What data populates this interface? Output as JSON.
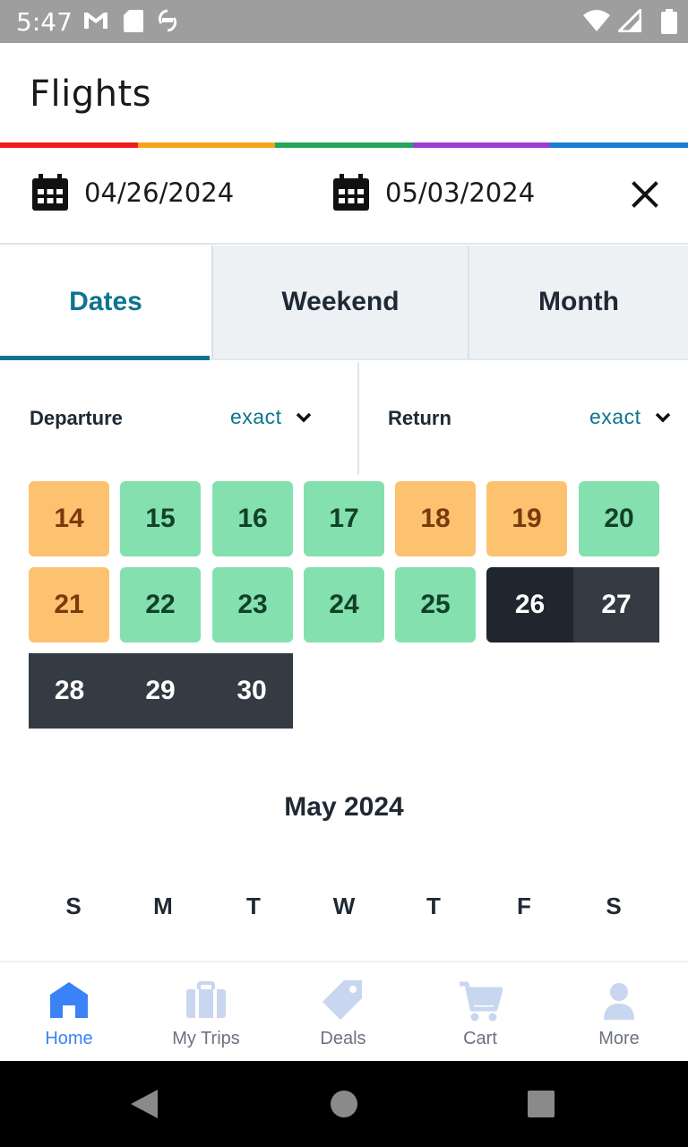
{
  "status_bar": {
    "time": "5:47"
  },
  "header": {
    "title": "Flights"
  },
  "rainbow_colors": [
    "#ee1c1c",
    "#f4a21a",
    "#22a65a",
    "#9b3fd0",
    "#1a7ed8"
  ],
  "dates": {
    "departure": "04/26/2024",
    "return": "05/03/2024"
  },
  "tabs": [
    {
      "label": "Dates"
    },
    {
      "label": "Weekend"
    },
    {
      "label": "Month"
    }
  ],
  "departure": {
    "label": "Departure",
    "mode": "exact"
  },
  "return_sel": {
    "label": "Return",
    "mode": "exact"
  },
  "april_days": [
    {
      "day": "14",
      "price_level": "orange"
    },
    {
      "day": "15",
      "price_level": "green"
    },
    {
      "day": "16",
      "price_level": "green"
    },
    {
      "day": "17",
      "price_level": "green"
    },
    {
      "day": "18",
      "price_level": "orange"
    },
    {
      "day": "19",
      "price_level": "orange"
    },
    {
      "day": "20",
      "price_level": "green"
    },
    {
      "day": "21",
      "price_level": "orange"
    },
    {
      "day": "22",
      "price_level": "green"
    },
    {
      "day": "23",
      "price_level": "green"
    },
    {
      "day": "24",
      "price_level": "green"
    },
    {
      "day": "25",
      "price_level": "green"
    },
    {
      "day": "26",
      "price_level": "selected-start"
    },
    {
      "day": "27",
      "price_level": "selected-range"
    },
    {
      "day": "28",
      "price_level": "selected-range"
    },
    {
      "day": "29",
      "price_level": "selected-range"
    },
    {
      "day": "30",
      "price_level": "selected-range"
    }
  ],
  "next_month": {
    "title": "May 2024",
    "weekdays": [
      "S",
      "M",
      "T",
      "W",
      "T",
      "F",
      "S"
    ]
  },
  "bottom_nav": [
    {
      "label": "Home",
      "icon": "home-icon",
      "active": true
    },
    {
      "label": "My Trips",
      "icon": "briefcase-icon",
      "active": false
    },
    {
      "label": "Deals",
      "icon": "tag-icon",
      "active": false
    },
    {
      "label": "Cart",
      "icon": "cart-icon",
      "active": false
    },
    {
      "label": "More",
      "icon": "person-icon",
      "active": false
    }
  ],
  "colors": {
    "accent": "#0e7490",
    "nav_active": "#3b82f6",
    "nav_inactive_icon": "#c9d6ef",
    "cheap": "#84e0ae",
    "moderate": "#fdc270",
    "selected": "#343b43"
  }
}
